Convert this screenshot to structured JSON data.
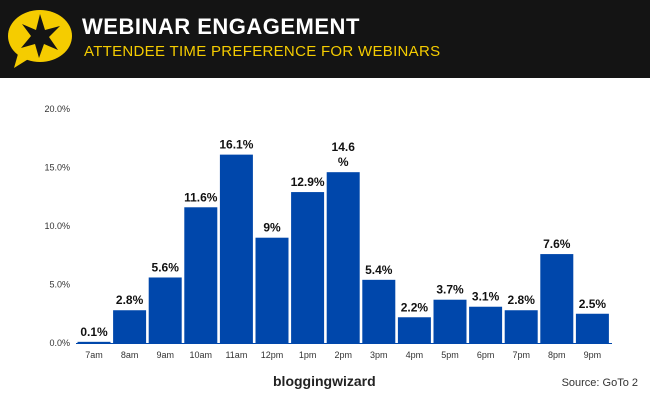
{
  "header": {
    "title": "WEBINAR ENGAGEMENT",
    "subtitle": "ATTENDEE TIME PREFERENCE FOR WEBINARS",
    "logo_icon": "speech-bubble-star-icon"
  },
  "footer": {
    "brand": "bloggingwizard",
    "source": "Source: GoTo 2"
  },
  "colors": {
    "bar": "#0047ab",
    "header_bg": "#141414",
    "accent": "#f5cc00"
  },
  "chart_data": {
    "type": "bar",
    "categories": [
      "7am",
      "8am",
      "9am",
      "10am",
      "11am",
      "12pm",
      "1pm",
      "2pm",
      "3pm",
      "4pm",
      "5pm",
      "6pm",
      "7pm",
      "8pm",
      "9pm"
    ],
    "values": [
      0.1,
      2.8,
      5.6,
      11.6,
      16.1,
      9,
      12.9,
      14.6,
      5.4,
      2.2,
      3.7,
      3.1,
      2.8,
      7.6,
      2.5
    ],
    "labels": [
      "0.1%",
      "2.8%",
      "5.6%",
      "11.6%",
      "16.1%",
      "9%",
      "12.9%",
      "14.6 %",
      "5.4%",
      "2.2%",
      "3.7%",
      "3.1%",
      "2.8%",
      "7.6%",
      "2.5%"
    ],
    "yticks": [
      "0.0%",
      "5.0%",
      "10.0%",
      "15.0%",
      "20.0%"
    ],
    "ylim": [
      0,
      20
    ],
    "grid": false
  }
}
